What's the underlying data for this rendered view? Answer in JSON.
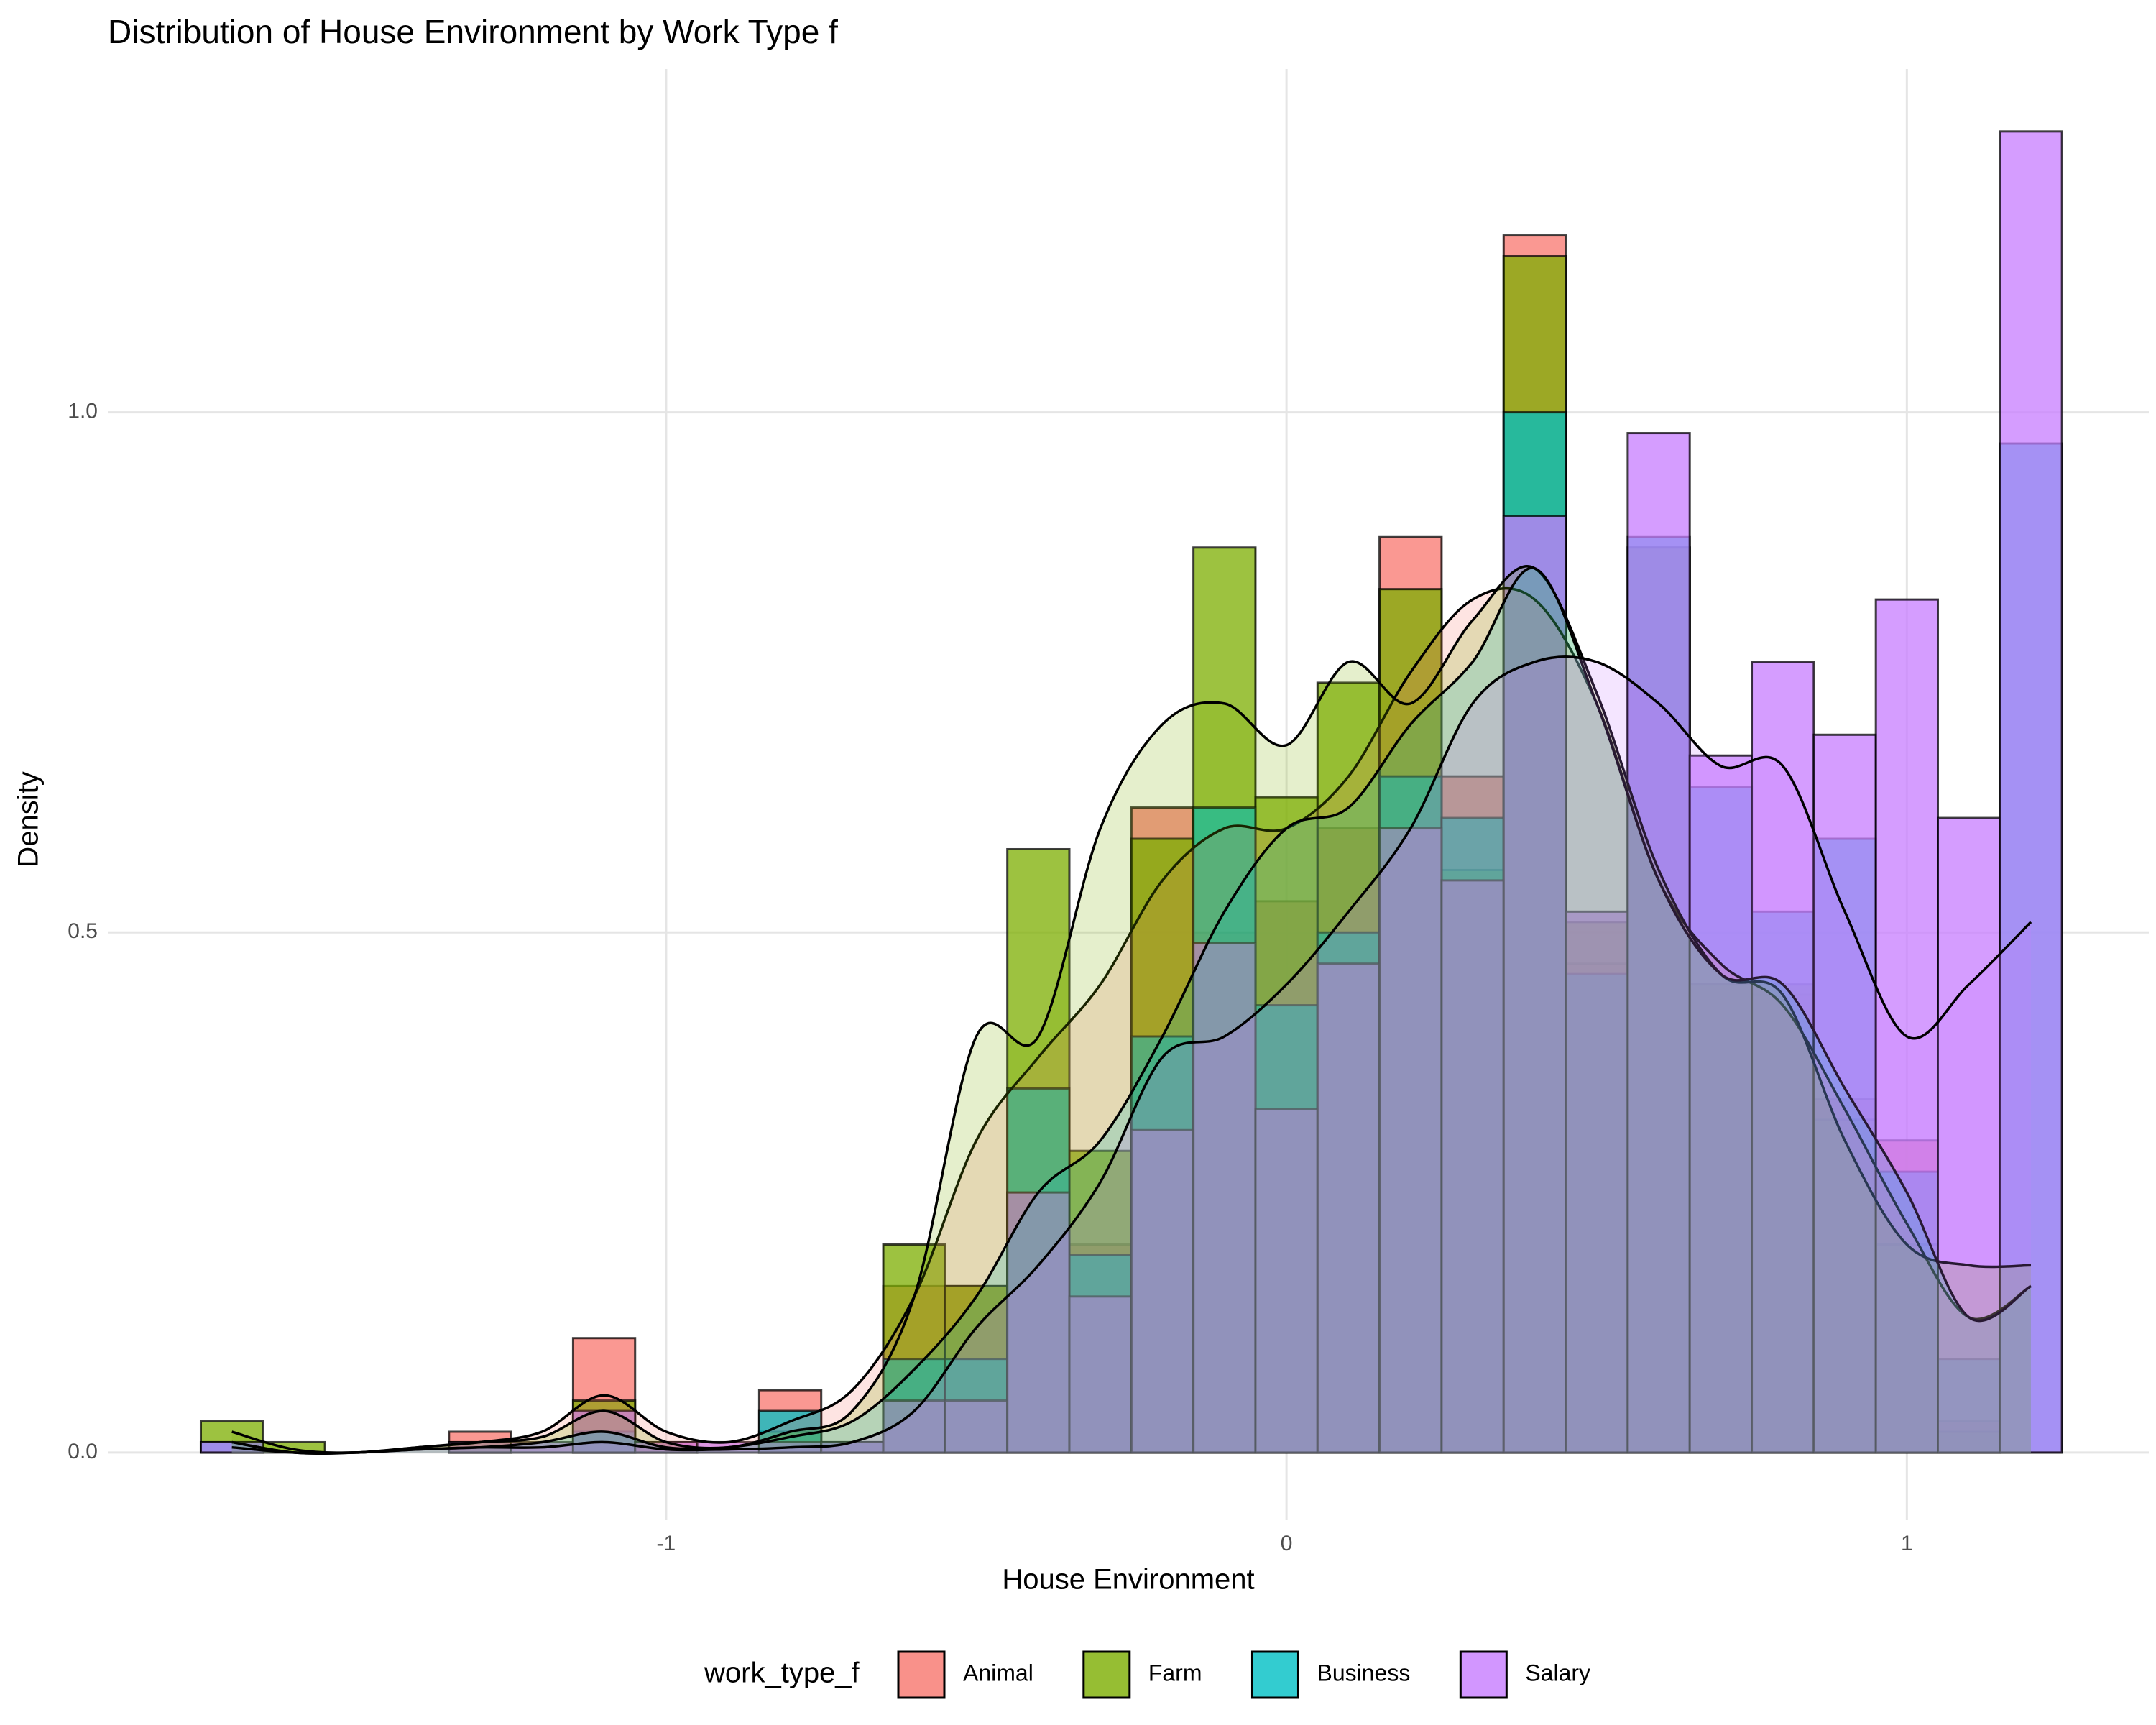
{
  "chart_data": {
    "type": "histogram",
    "title": "Distribution of House Environment by Work Type f",
    "x_label": "House Environment",
    "y_label": "Density",
    "legend_title": "work_type_f",
    "legend_position": "bottom",
    "grid": true,
    "xlim": [
      -1.9,
      1.39
    ],
    "ylim": [
      -0.065,
      1.33
    ],
    "xticks": [
      -1,
      0,
      1
    ],
    "yticks": [
      {
        "value": 0,
        "label": "0.0"
      },
      0.5,
      {
        "value": 1,
        "label": "1.0"
      }
    ],
    "bins": [
      -1.75,
      -1.65,
      -1.55,
      -1.45,
      -1.35,
      -1.25,
      -1.15,
      -1.05,
      -0.95,
      -0.85,
      -0.75,
      -0.65,
      -0.55,
      -0.45,
      -0.35,
      -0.25,
      -0.15,
      -0.05,
      0.05,
      0.15,
      0.25,
      0.35,
      0.45,
      0.55,
      0.65,
      0.75,
      0.85,
      0.95,
      1.05,
      1.15,
      1.25
    ],
    "density_x": [
      -1.7,
      -1.6,
      -1.5,
      -1.4,
      -1.3,
      -1.2,
      -1.1,
      -1.0,
      -0.9,
      -0.8,
      -0.7,
      -0.6,
      -0.5,
      -0.4,
      -0.3,
      -0.2,
      -0.1,
      0.0,
      0.1,
      0.2,
      0.3,
      0.4,
      0.5,
      0.6,
      0.7,
      0.8,
      0.9,
      1.0,
      1.1,
      1.2
    ],
    "series": [
      {
        "name": "Animal",
        "color": "#F8766D",
        "values": [
          0,
          0,
          0,
          0,
          0.02,
          0,
          0.11,
          0.01,
          0,
          0.06,
          0.01,
          0.16,
          0.16,
          0.25,
          0.2,
          0.62,
          0.5,
          0.53,
          0.6,
          0.88,
          0.65,
          1.17,
          0.47,
          0.87,
          0.45,
          0.44,
          0.34,
          0.3,
          0.03,
          0
        ],
        "density": [
          0.01,
          0,
          0,
          0.005,
          0.01,
          0.02,
          0.055,
          0.02,
          0.01,
          0.03,
          0.06,
          0.15,
          0.3,
          0.38,
          0.45,
          0.55,
          0.6,
          0.6,
          0.65,
          0.75,
          0.82,
          0.82,
          0.72,
          0.55,
          0.47,
          0.43,
          0.33,
          0.22,
          0.13,
          0.16
        ]
      },
      {
        "name": "Farm",
        "color": "#7CAE00",
        "values": [
          0.03,
          0.01,
          0,
          0,
          0.01,
          0,
          0.05,
          0,
          0,
          0.02,
          0,
          0.2,
          0.16,
          0.58,
          0.29,
          0.59,
          0.87,
          0.63,
          0.74,
          0.83,
          0.56,
          1.15,
          0.51,
          0.87,
          0.45,
          0.45,
          0.32,
          0.2,
          0.02,
          0
        ],
        "density": [
          0.02,
          0.003,
          0,
          0.005,
          0.01,
          0.015,
          0.04,
          0.01,
          0.005,
          0.02,
          0.04,
          0.15,
          0.4,
          0.4,
          0.6,
          0.7,
          0.72,
          0.68,
          0.76,
          0.72,
          0.8,
          0.85,
          0.73,
          0.56,
          0.46,
          0.44,
          0.3,
          0.2,
          0.18,
          0.18
        ]
      },
      {
        "name": "Business",
        "color": "#00BFC4",
        "values": [
          0.01,
          0,
          0,
          0,
          0,
          0,
          0.02,
          0,
          0,
          0.04,
          0.01,
          0.09,
          0.09,
          0.35,
          0.19,
          0.4,
          0.62,
          0.43,
          0.5,
          0.65,
          0.61,
          1.0,
          0.46,
          0.88,
          0.64,
          0.52,
          0.59,
          0.27,
          0.09,
          0.97
        ],
        "density": [
          0.01,
          0,
          0,
          0.003,
          0.005,
          0.01,
          0.02,
          0.005,
          0.005,
          0.015,
          0.03,
          0.08,
          0.15,
          0.25,
          0.3,
          0.4,
          0.52,
          0.6,
          0.62,
          0.7,
          0.76,
          0.85,
          0.72,
          0.55,
          0.46,
          0.45,
          0.35,
          0.25,
          0.13,
          0.16
        ]
      },
      {
        "name": "Salary",
        "color": "#C77CFF",
        "values": [
          0.01,
          0,
          0,
          0,
          0.01,
          0.01,
          0.04,
          0.01,
          0.01,
          0.01,
          0.01,
          0.05,
          0.05,
          0.25,
          0.15,
          0.31,
          0.49,
          0.33,
          0.47,
          0.6,
          0.55,
          0.9,
          0.52,
          0.98,
          0.67,
          0.76,
          0.69,
          0.82,
          0.61,
          1.27
        ],
        "density": [
          0.005,
          0,
          0,
          0.003,
          0.005,
          0.005,
          0.01,
          0.003,
          0.003,
          0.005,
          0.01,
          0.04,
          0.12,
          0.18,
          0.26,
          0.38,
          0.4,
          0.45,
          0.52,
          0.6,
          0.72,
          0.76,
          0.76,
          0.72,
          0.66,
          0.66,
          0.52,
          0.4,
          0.45,
          0.51
        ]
      }
    ]
  }
}
